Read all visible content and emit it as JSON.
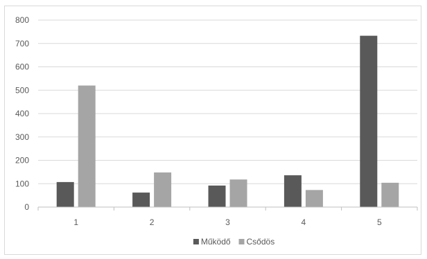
{
  "chart_data": {
    "type": "bar",
    "categories": [
      "1",
      "2",
      "3",
      "4",
      "5"
    ],
    "series": [
      {
        "name": "Működő",
        "values": [
          107,
          62,
          92,
          136,
          733
        ],
        "color": "#595959"
      },
      {
        "name": "Csődös",
        "values": [
          520,
          148,
          118,
          73,
          104
        ],
        "color": "#a5a5a5"
      }
    ],
    "ylim": [
      0,
      800
    ],
    "yticks": [
      0,
      100,
      200,
      300,
      400,
      500,
      600,
      700,
      800
    ],
    "grid": true,
    "legend_position": "bottom",
    "title": "",
    "xlabel": "",
    "ylabel": ""
  }
}
